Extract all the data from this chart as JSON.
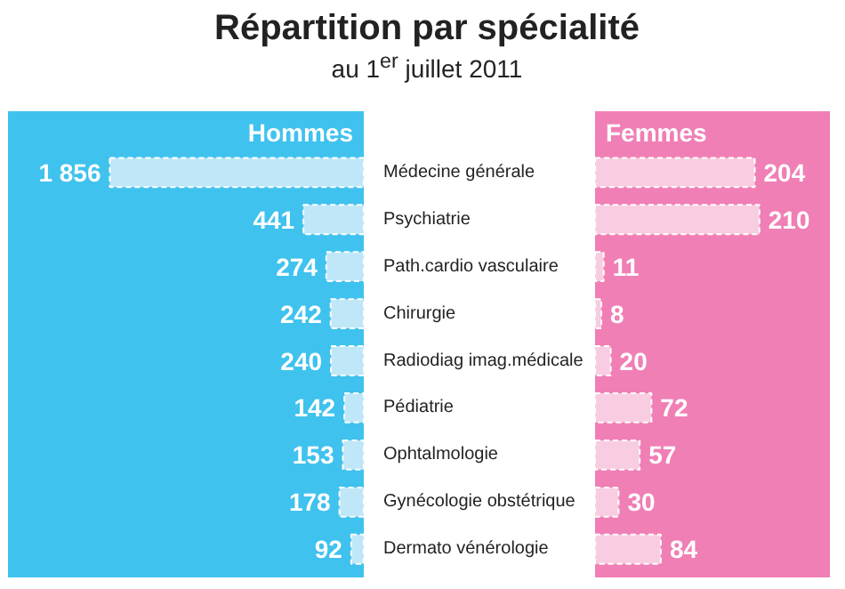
{
  "chart_data": [
    {
      "type": "bar",
      "orientation": "horizontal",
      "title": "Répartition par spécialité",
      "subtitle": "au 1$^{er}$ juillet 2011",
      "categories": [
        "Médecine générale",
        "Psychiatrie",
        "Path.cardio vasculaire",
        "Chirurgie",
        "Radiodiag imag.médicale",
        "Pédiatrie",
        "Ophtalmologie",
        "Gynécologie obstétrique",
        "Dermato vénérologie"
      ],
      "xlim": [
        2600,
        0
      ],
      "grid": false,
      "series": [
        {
          "name": "Hommes",
          "color": "#bfe7f8",
          "values": [
            1856,
            441,
            274,
            242,
            240,
            142,
            153,
            178,
            92
          ],
          "value_labels": [
            "1 856",
            "441",
            "274",
            "242",
            "240",
            "142",
            "153",
            "178",
            "92"
          ]
        }
      ]
    },
    {
      "type": "bar",
      "orientation": "horizontal",
      "categories": [
        null,
        null,
        null,
        null,
        null,
        null,
        null,
        null,
        null
      ],
      "xlim": [
        0,
        300
      ],
      "grid": false,
      "tick_labels": false,
      "series": [
        {
          "name": "Femmes",
          "color": "#f8cde1",
          "values": [
            204,
            210,
            11,
            8,
            20,
            72,
            57,
            30,
            84
          ]
        }
      ],
      "data_labels": true
    }
  ]
}
